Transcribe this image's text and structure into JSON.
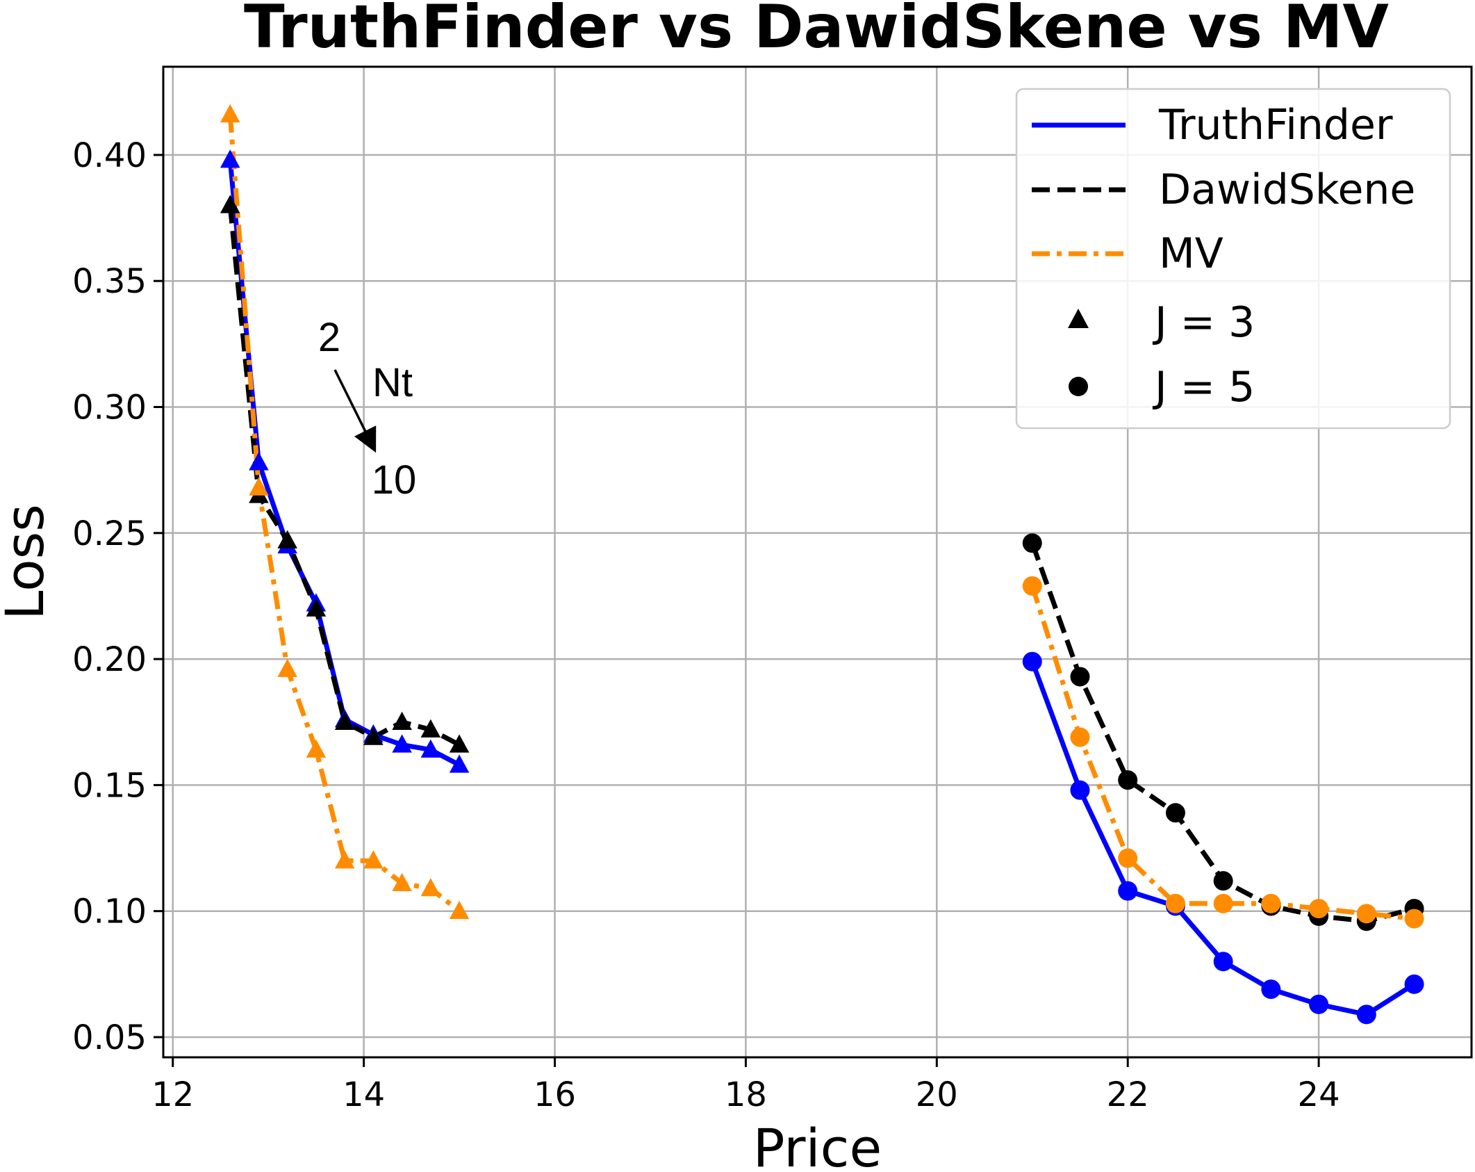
{
  "chart_data": {
    "type": "line",
    "title": "TruthFinder vs DawidSkene vs MV",
    "xlabel": "Price",
    "ylabel": "Loss",
    "xlim": [
      11.9,
      25.6
    ],
    "ylim": [
      0.042,
      0.435
    ],
    "xticks": [
      12,
      14,
      16,
      18,
      20,
      22,
      24
    ],
    "yticks": [
      0.05,
      0.1,
      0.15,
      0.2,
      0.25,
      0.3,
      0.35,
      0.4
    ],
    "grid": true,
    "legend_position": "top-right",
    "colors": {
      "TruthFinder": "#0000ff",
      "DawidSkene": "#000000",
      "MV": "#ff8c00"
    },
    "legend": {
      "lines": [
        "TruthFinder",
        "DawidSkene",
        "MV"
      ],
      "markers": [
        {
          "label": "J = 3",
          "marker": "triangle"
        },
        {
          "label": "J = 5",
          "marker": "circle"
        }
      ]
    },
    "annotation": {
      "start": "2",
      "end": "10",
      "label": "Nt"
    },
    "series": [
      {
        "name": "TruthFinder",
        "group": "J = 3",
        "marker": "triangle",
        "style": "solid",
        "x": [
          12.6,
          12.9,
          13.2,
          13.5,
          13.8,
          14.1,
          14.4,
          14.7,
          15.0
        ],
        "y": [
          0.398,
          0.278,
          0.245,
          0.222,
          0.176,
          0.17,
          0.166,
          0.164,
          0.158
        ]
      },
      {
        "name": "DawidSkene",
        "group": "J = 3",
        "marker": "triangle",
        "style": "dashed",
        "x": [
          12.6,
          12.9,
          13.2,
          13.5,
          13.8,
          14.1,
          14.4,
          14.7,
          15.0
        ],
        "y": [
          0.38,
          0.265,
          0.247,
          0.22,
          0.175,
          0.169,
          0.175,
          0.172,
          0.166
        ]
      },
      {
        "name": "MV",
        "group": "J = 3",
        "marker": "triangle",
        "style": "dashdot",
        "x": [
          12.6,
          12.9,
          13.2,
          13.5,
          13.8,
          14.1,
          14.4,
          14.7,
          15.0
        ],
        "y": [
          0.416,
          0.268,
          0.196,
          0.164,
          0.12,
          0.12,
          0.111,
          0.109,
          0.1
        ]
      },
      {
        "name": "TruthFinder",
        "group": "J = 5",
        "marker": "circle",
        "style": "solid",
        "x": [
          21.0,
          21.5,
          22.0,
          22.5,
          23.0,
          23.5,
          24.0,
          24.5,
          25.0
        ],
        "y": [
          0.199,
          0.148,
          0.108,
          0.102,
          0.08,
          0.069,
          0.063,
          0.059,
          0.071
        ]
      },
      {
        "name": "DawidSkene",
        "group": "J = 5",
        "marker": "circle",
        "style": "dashed",
        "x": [
          21.0,
          21.5,
          22.0,
          22.5,
          23.0,
          23.5,
          24.0,
          24.5,
          25.0
        ],
        "y": [
          0.246,
          0.193,
          0.152,
          0.139,
          0.112,
          0.102,
          0.098,
          0.096,
          0.101
        ]
      },
      {
        "name": "MV",
        "group": "J = 5",
        "marker": "circle",
        "style": "dashdot",
        "x": [
          21.0,
          21.5,
          22.0,
          22.5,
          23.0,
          23.5,
          24.0,
          24.5,
          25.0
        ],
        "y": [
          0.229,
          0.169,
          0.121,
          0.103,
          0.103,
          0.103,
          0.101,
          0.099,
          0.097
        ]
      }
    ]
  }
}
